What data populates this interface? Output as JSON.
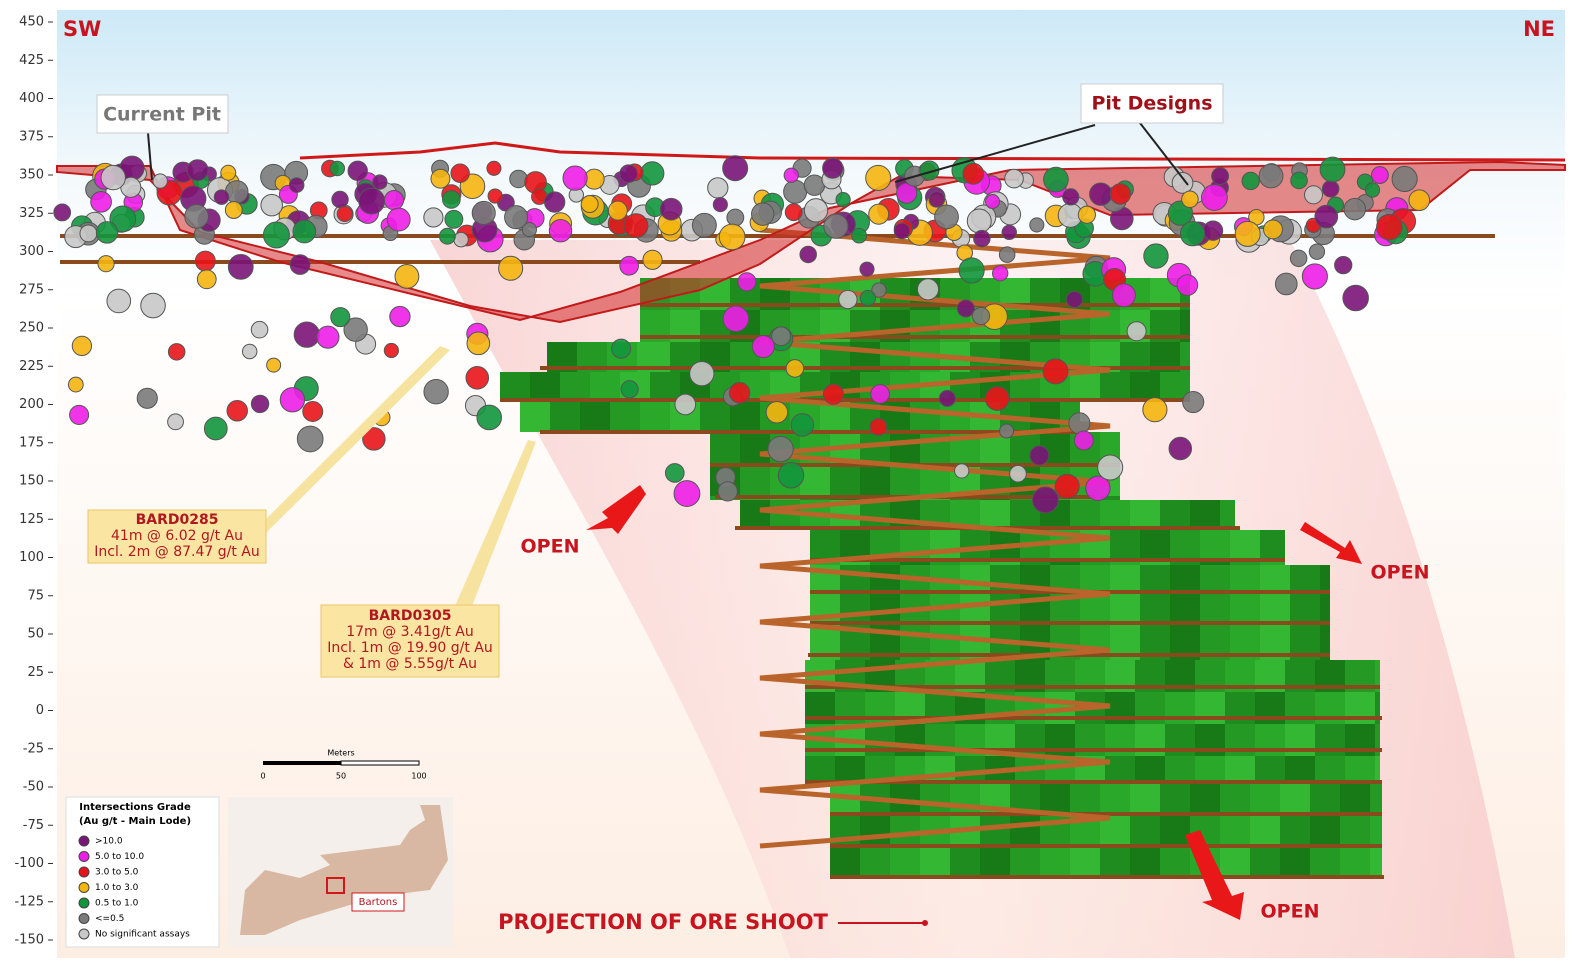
{
  "axis": {
    "ticks": [
      450,
      425,
      400,
      375,
      350,
      325,
      300,
      275,
      250,
      225,
      200,
      175,
      150,
      125,
      100,
      75,
      50,
      25,
      0,
      -25,
      -50,
      -75,
      -100,
      -125,
      -150
    ]
  },
  "labels": {
    "sw": "SW",
    "ne": "NE",
    "current_pit": "Current Pit",
    "pit_designs": "Pit Designs",
    "open": [
      "OPEN",
      "OPEN",
      "OPEN"
    ],
    "projection": "PROJECTION OF ORE SHOOT"
  },
  "callouts": [
    {
      "hole": "BARD0285",
      "lines": [
        "41m @ 6.02 g/t Au",
        "Incl. 2m @ 87.47 g/t Au"
      ]
    },
    {
      "hole": "BARD0305",
      "lines": [
        "17m @ 3.41g/t Au",
        "Incl. 1m @ 19.90 g/t Au",
        "& 1m @ 5.55g/t Au"
      ]
    }
  ],
  "legend": {
    "title": [
      "Intersections Grade",
      "(Au g/t - Main Lode)"
    ],
    "items": [
      {
        "label": ">10.0",
        "color": "#7a1478"
      },
      {
        "label": "5.0 to 10.0",
        "color": "#ee1ee8"
      },
      {
        "label": "3.0 to 5.0",
        "color": "#e8141a"
      },
      {
        "label": "1.0 to 3.0",
        "color": "#f5b50f"
      },
      {
        "label": "0.5 to 1.0",
        "color": "#12963c"
      },
      {
        "label": "<=0.5",
        "color": "#7a7a7a"
      },
      {
        "label": "No significant assays",
        "color": "#c8c8c8"
      }
    ]
  },
  "scale_bar": {
    "title": "Meters",
    "ticks": [
      0,
      50,
      100
    ]
  },
  "inset": {
    "label": "Bartons"
  }
}
